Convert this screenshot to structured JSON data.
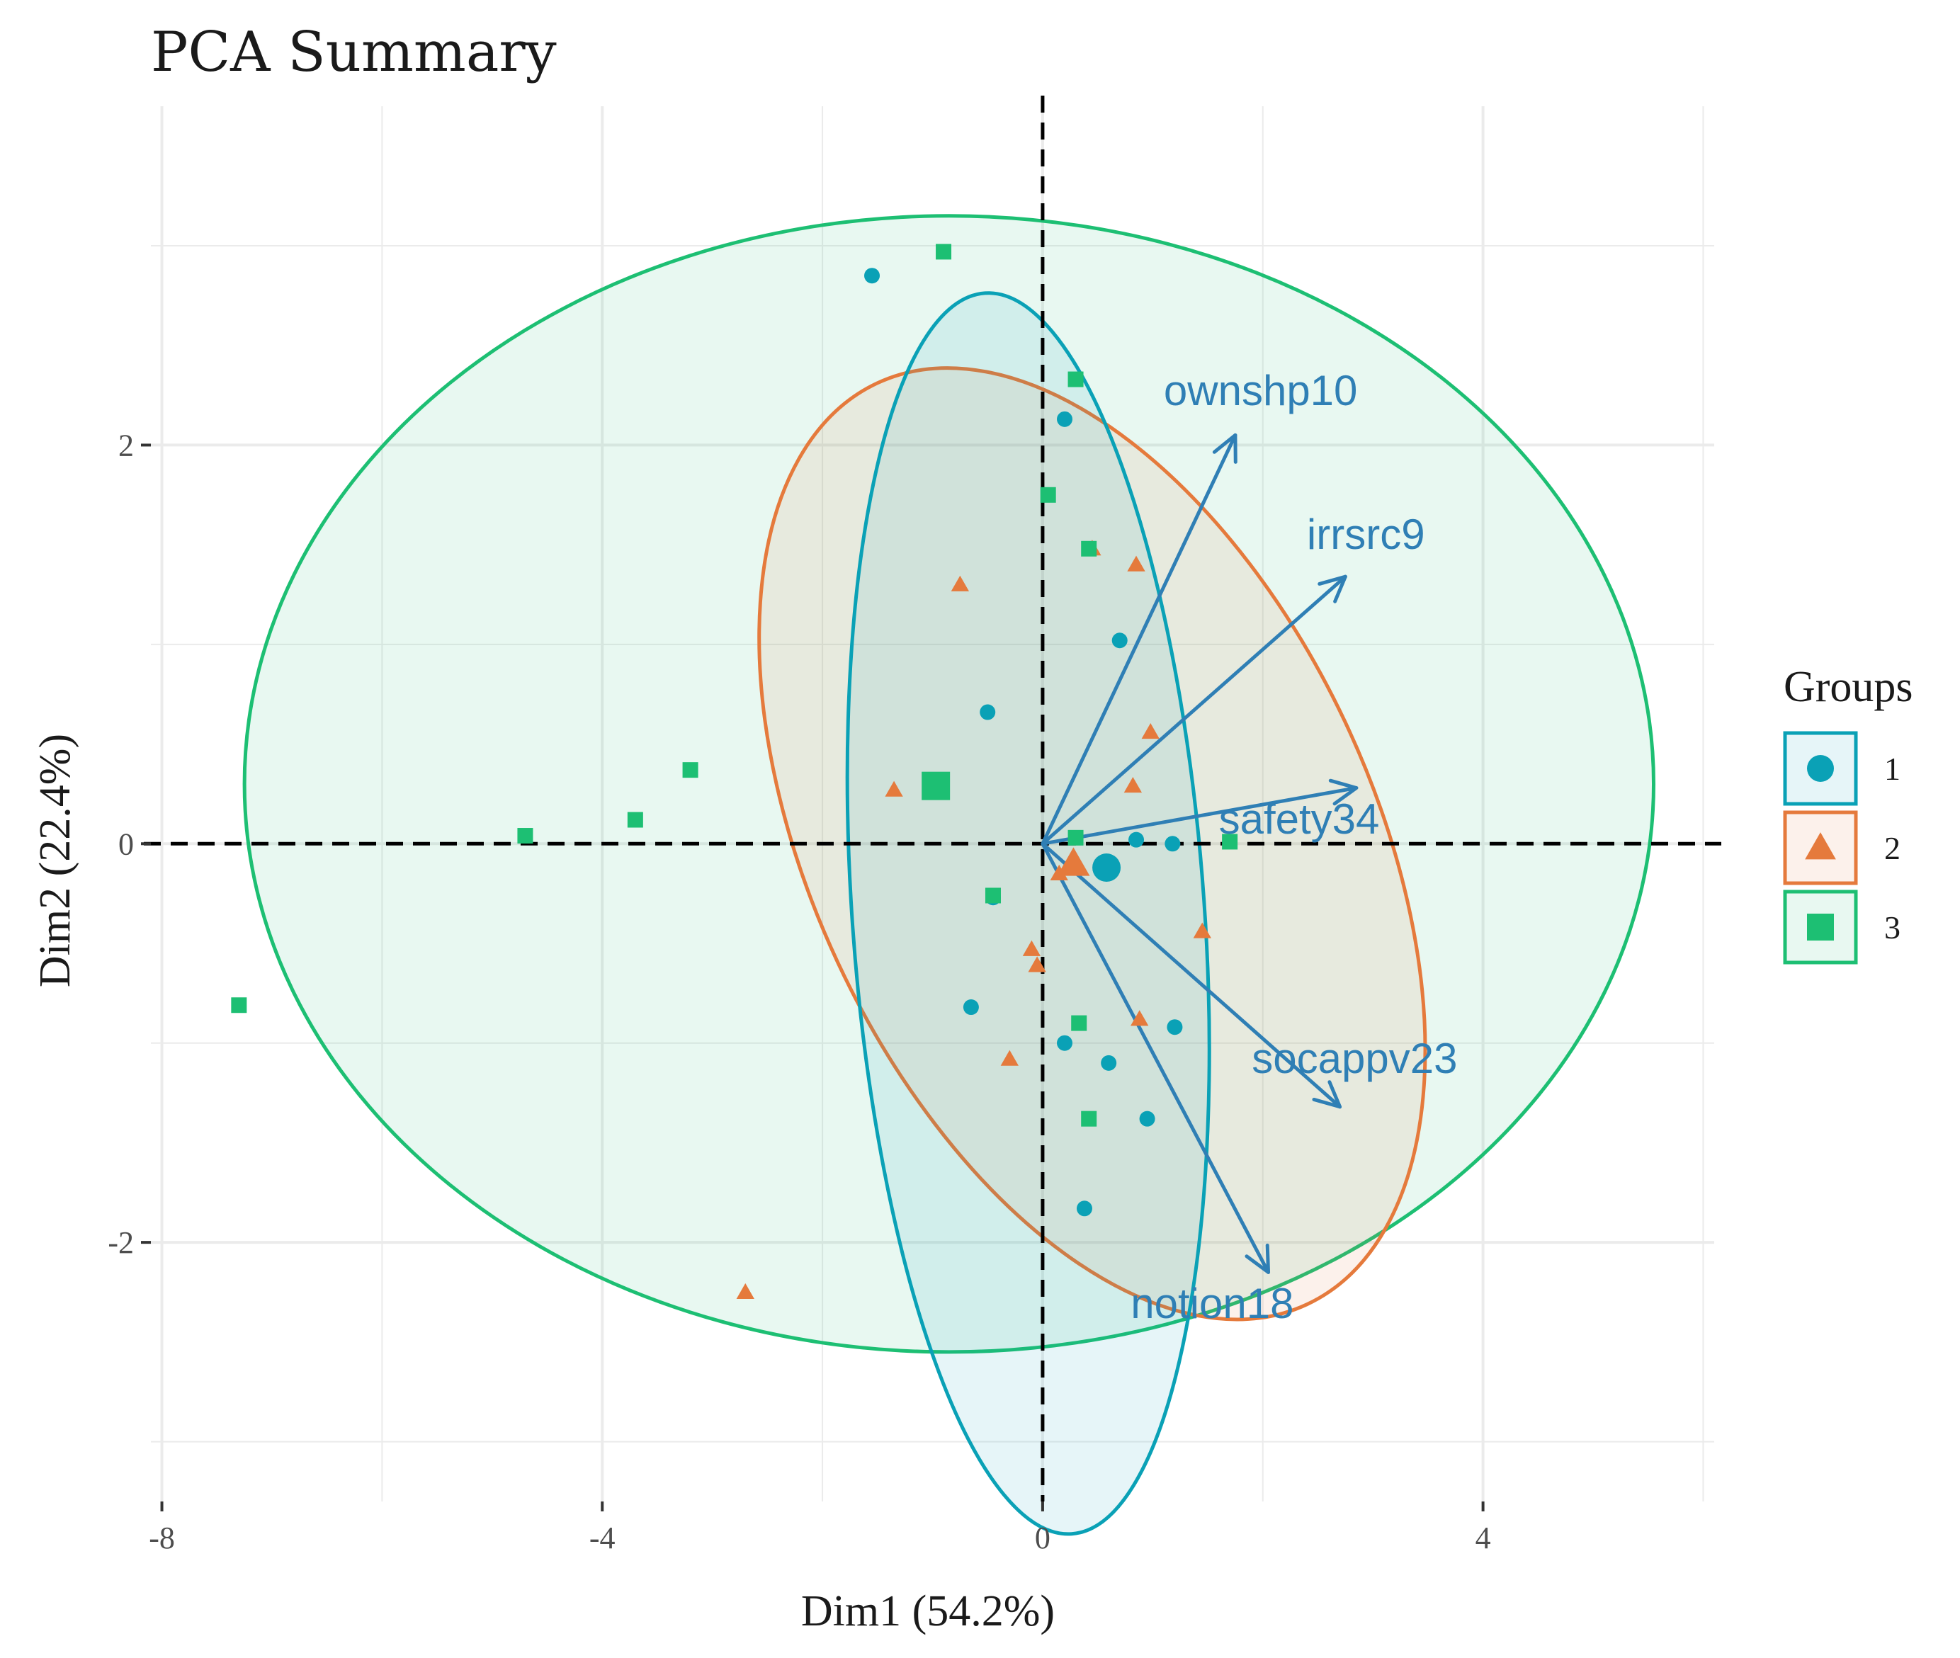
{
  "chart_data": {
    "type": "scatter",
    "title": "PCA Summary",
    "xlabel": "Dim1 (54.2%)",
    "ylabel": "Dim2 (22.4%)",
    "xlim": [
      -8.1,
      6.1
    ],
    "ylim": [
      -3.3,
      3.7
    ],
    "xticks": [
      -8,
      -4,
      0,
      4
    ],
    "xtick_labels": [
      "-8",
      "-4",
      "0",
      "4"
    ],
    "yticks": [
      -2,
      0,
      2
    ],
    "ytick_labels": [
      "-2",
      "0",
      "2"
    ],
    "grid": true,
    "legend": {
      "title": "Groups",
      "position": "right",
      "entries": [
        {
          "label": "1",
          "shape": "circle",
          "color": "#0aa1b6"
        },
        {
          "label": "2",
          "shape": "triangle",
          "color": "#e57a3c"
        },
        {
          "label": "3",
          "shape": "square",
          "color": "#1dbf73"
        }
      ]
    },
    "groups": [
      {
        "name": "1",
        "shape": "circle",
        "color": "#0aa1b6",
        "points": [
          [
            -1.55,
            2.85
          ],
          [
            0.2,
            2.13
          ],
          [
            0.7,
            1.02
          ],
          [
            -0.5,
            0.66
          ],
          [
            0.85,
            0.02
          ],
          [
            1.18,
            0.0
          ],
          [
            -0.45,
            -0.27
          ],
          [
            -0.65,
            -0.82
          ],
          [
            0.2,
            -1.0
          ],
          [
            0.6,
            -1.1
          ],
          [
            1.2,
            -0.92
          ],
          [
            0.95,
            -1.38
          ],
          [
            0.38,
            -1.83
          ]
        ],
        "centroid": [
          0.58,
          -0.12
        ],
        "ellipse": {
          "center": [
            -0.13,
            -0.35
          ],
          "rx": 1.6,
          "ry": 3.12,
          "angle": -4
        }
      },
      {
        "name": "2",
        "shape": "triangle",
        "color": "#e57a3c",
        "points": [
          [
            -0.75,
            1.3
          ],
          [
            0.85,
            1.4
          ],
          [
            0.45,
            1.48
          ],
          [
            0.98,
            0.56
          ],
          [
            0.82,
            0.29
          ],
          [
            -1.35,
            0.27
          ],
          [
            0.15,
            -0.15
          ],
          [
            1.45,
            -0.44
          ],
          [
            -0.1,
            -0.53
          ],
          [
            -0.05,
            -0.61
          ],
          [
            0.88,
            -0.88
          ],
          [
            -0.3,
            -1.08
          ],
          [
            -2.7,
            -2.25
          ]
        ],
        "centroid": [
          0.28,
          -0.1
        ],
        "ellipse": {
          "center": [
            0.45,
            0.0
          ],
          "rx": 2.55,
          "ry": 2.55,
          "angle": -25
        }
      },
      {
        "name": "3",
        "shape": "square",
        "color": "#1dbf73",
        "points": [
          [
            -0.9,
            2.97
          ],
          [
            0.3,
            2.33
          ],
          [
            0.05,
            1.75
          ],
          [
            0.42,
            1.48
          ],
          [
            -3.2,
            0.37
          ],
          [
            -3.7,
            0.12
          ],
          [
            -4.7,
            0.04
          ],
          [
            0.3,
            0.03
          ],
          [
            1.7,
            0.01
          ],
          [
            -0.45,
            -0.26
          ],
          [
            0.33,
            -0.9
          ],
          [
            0.42,
            -1.38
          ],
          [
            -7.3,
            -0.81
          ]
        ],
        "centroid": [
          -0.97,
          0.29
        ],
        "ellipse": {
          "center": [
            -0.85,
            0.3
          ],
          "rx": 6.4,
          "ry": 2.85,
          "angle": 0
        }
      }
    ],
    "variables": [
      {
        "name": "ownshp10",
        "x": 1.75,
        "y": 2.05,
        "label_x": 1.1,
        "label_y": 2.2
      },
      {
        "name": "irrsrc9",
        "x": 2.75,
        "y": 1.34,
        "label_x": 2.4,
        "label_y": 1.48
      },
      {
        "name": "safety34",
        "x": 2.85,
        "y": 0.28,
        "label_x": 1.6,
        "label_y": 0.05
      },
      {
        "name": "socappv23",
        "x": 2.7,
        "y": -1.32,
        "label_x": 1.9,
        "label_y": -1.15
      },
      {
        "name": "notion18",
        "x": 2.05,
        "y": -2.15,
        "label_x": 0.8,
        "label_y": -2.38
      }
    ]
  }
}
